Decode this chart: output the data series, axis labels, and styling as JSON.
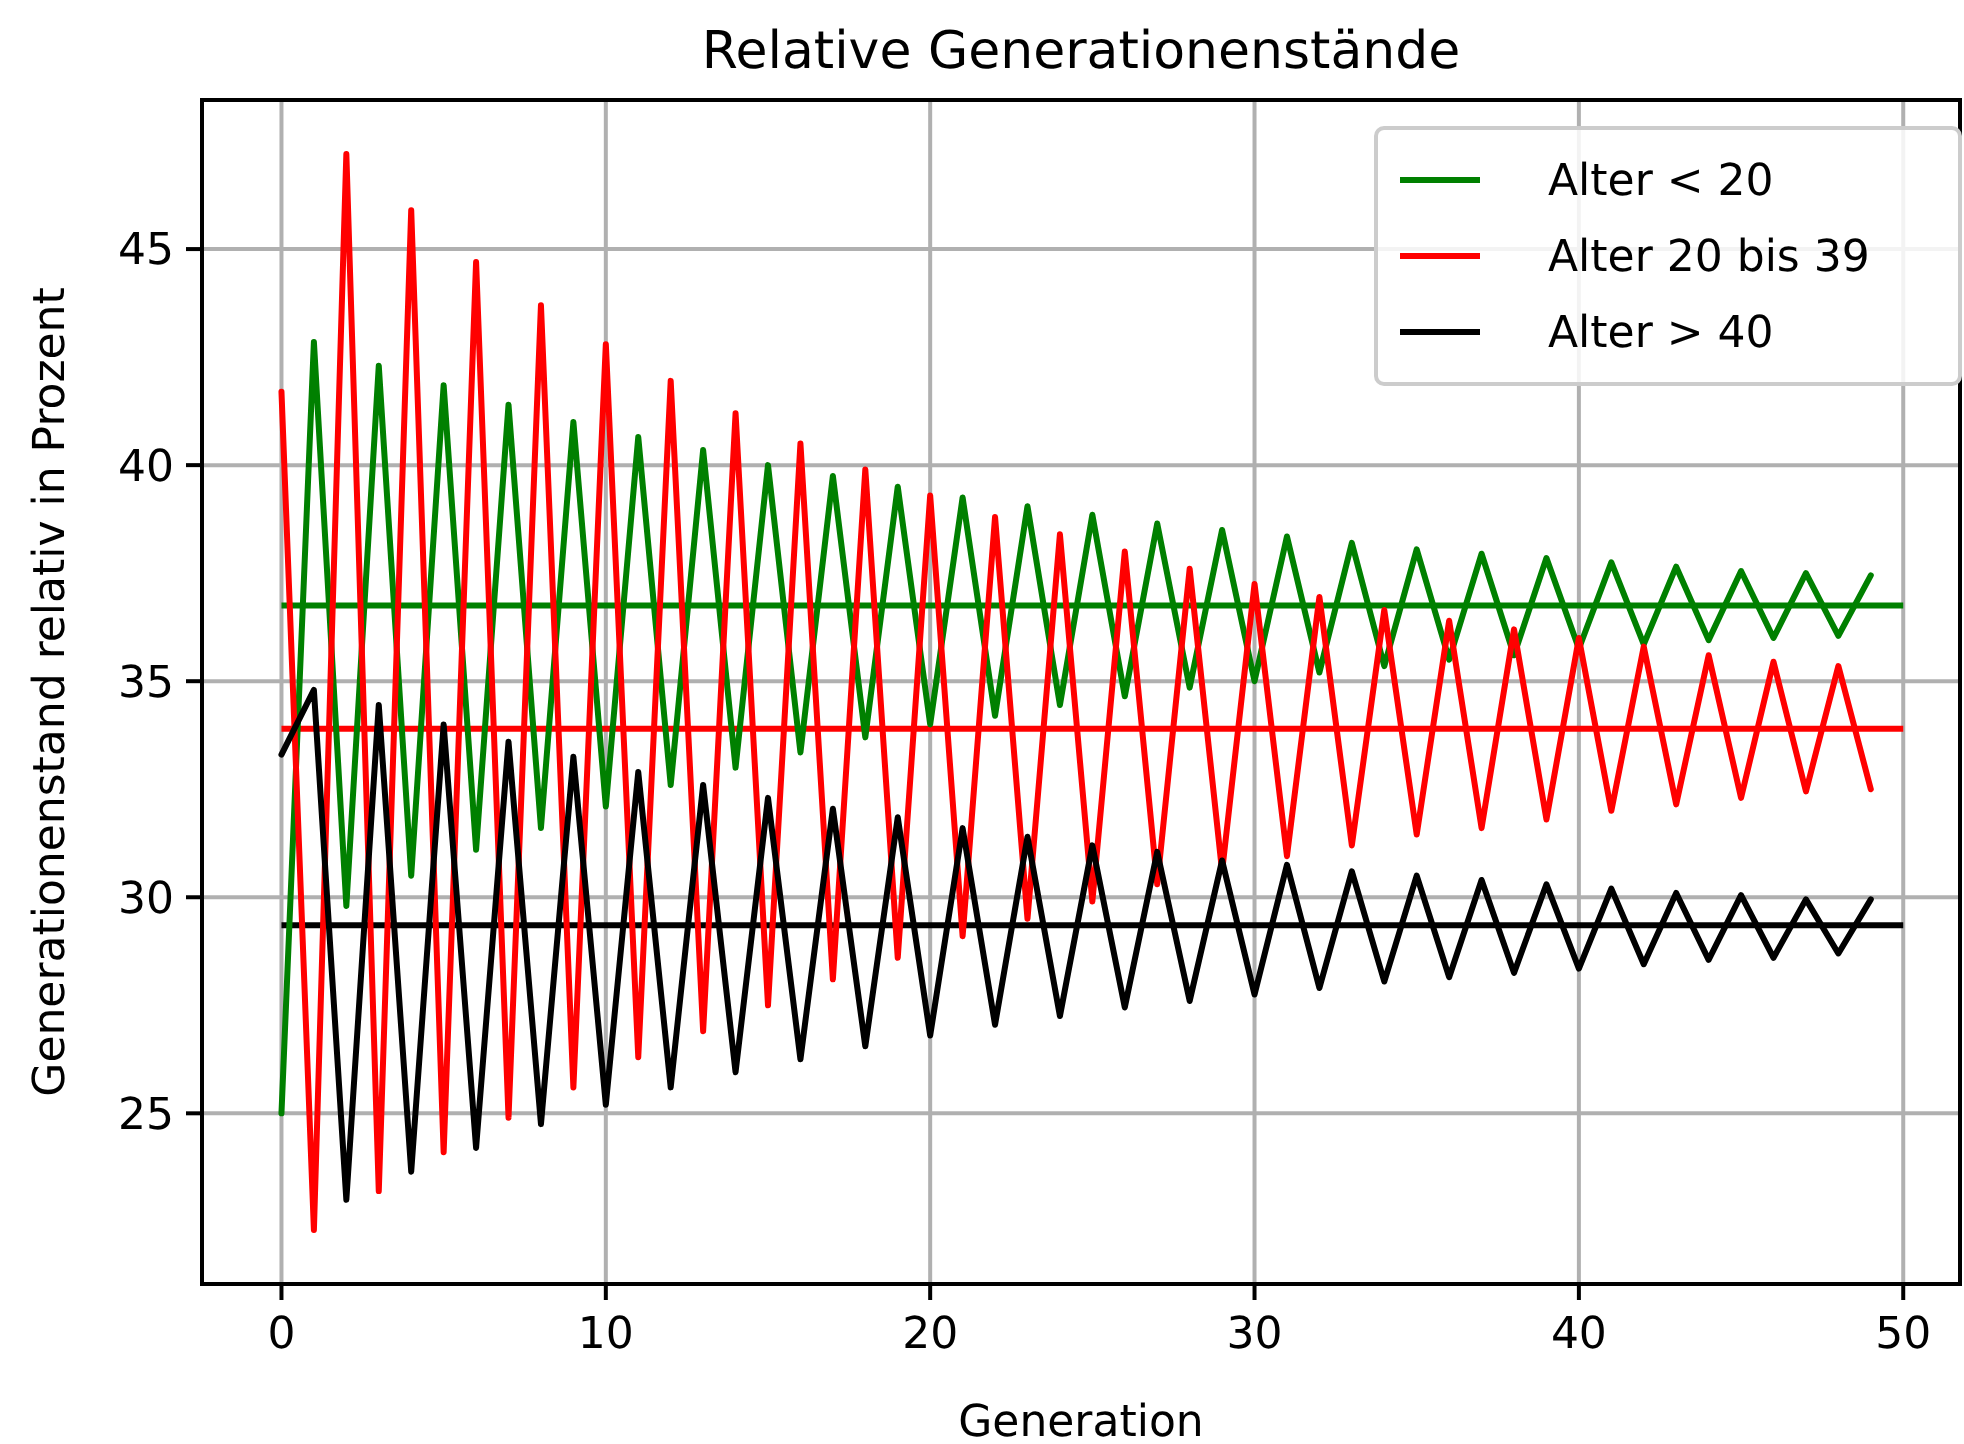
{
  "chart_data": {
    "type": "line",
    "title": "Relative Generationenstände",
    "xlabel": "Generation",
    "ylabel": "Generationenstand relativ in Prozent",
    "x": [
      0,
      1,
      2,
      3,
      4,
      5,
      6,
      7,
      8,
      9,
      10,
      11,
      12,
      13,
      14,
      15,
      16,
      17,
      18,
      19,
      20,
      21,
      22,
      23,
      24,
      25,
      26,
      27,
      28,
      29,
      30,
      31,
      32,
      33,
      34,
      35,
      36,
      37,
      38,
      39,
      40,
      41,
      42,
      43,
      44,
      45,
      46,
      47,
      48,
      49
    ],
    "series": [
      {
        "name": "Alter < 20",
        "color": "#008000",
        "values": [
          25,
          42.85,
          29.8,
          42.3,
          30.5,
          41.85,
          31.1,
          41.4,
          31.6,
          41.0,
          32.1,
          40.65,
          32.6,
          40.35,
          33.0,
          40.0,
          33.35,
          39.75,
          33.7,
          39.5,
          34.0,
          39.25,
          34.2,
          39.05,
          34.45,
          38.85,
          34.65,
          38.65,
          34.85,
          38.5,
          35.0,
          38.35,
          35.2,
          38.2,
          35.35,
          38.05,
          35.5,
          37.95,
          35.6,
          37.85,
          35.75,
          37.75,
          35.85,
          37.65,
          35.95,
          37.55,
          36.0,
          37.5,
          36.05,
          37.45
        ]
      },
      {
        "name": "Alter 20 bis 39",
        "color": "#ff0000",
        "values": [
          41.7,
          22.3,
          47.2,
          23.2,
          45.9,
          24.1,
          44.7,
          24.9,
          43.7,
          25.6,
          42.8,
          26.3,
          41.95,
          26.9,
          41.2,
          27.5,
          40.5,
          28.1,
          39.9,
          28.6,
          39.3,
          29.1,
          38.8,
          29.5,
          38.4,
          29.9,
          38.0,
          30.3,
          37.6,
          30.6,
          37.25,
          30.95,
          36.95,
          31.2,
          36.65,
          31.45,
          36.4,
          31.6,
          36.2,
          31.8,
          36.0,
          32.0,
          35.8,
          32.15,
          35.6,
          32.3,
          35.45,
          32.45,
          35.35,
          32.5
        ]
      },
      {
        "name": "Alter > 40",
        "color": "#000000",
        "values": [
          33.3,
          34.8,
          23.0,
          34.45,
          23.65,
          34.0,
          24.2,
          33.6,
          24.75,
          33.25,
          25.2,
          32.9,
          25.6,
          32.6,
          25.95,
          32.3,
          26.25,
          32.05,
          26.55,
          31.85,
          26.8,
          31.6,
          27.05,
          31.4,
          27.25,
          31.2,
          27.45,
          31.05,
          27.6,
          30.85,
          27.75,
          30.75,
          27.9,
          30.6,
          28.05,
          30.5,
          28.15,
          30.4,
          28.25,
          30.3,
          28.35,
          30.2,
          28.45,
          30.1,
          28.55,
          30.05,
          28.6,
          29.95,
          28.7,
          29.95
        ]
      }
    ],
    "ref_lines": [
      {
        "axis": "y",
        "value": 36.75,
        "color": "#008000"
      },
      {
        "axis": "y",
        "value": 33.9,
        "color": "#ff0000"
      },
      {
        "axis": "y",
        "value": 29.35,
        "color": "#000000"
      }
    ],
    "xlim": [
      -2.45,
      51.75
    ],
    "xticks": [
      0,
      10,
      20,
      30,
      40,
      50
    ],
    "ylim": [
      21.05,
      48.45
    ],
    "yticks": [
      25,
      30,
      35,
      40,
      45
    ],
    "grid": true,
    "legend": "top right",
    "marker": "none",
    "line_style": "solid"
  }
}
